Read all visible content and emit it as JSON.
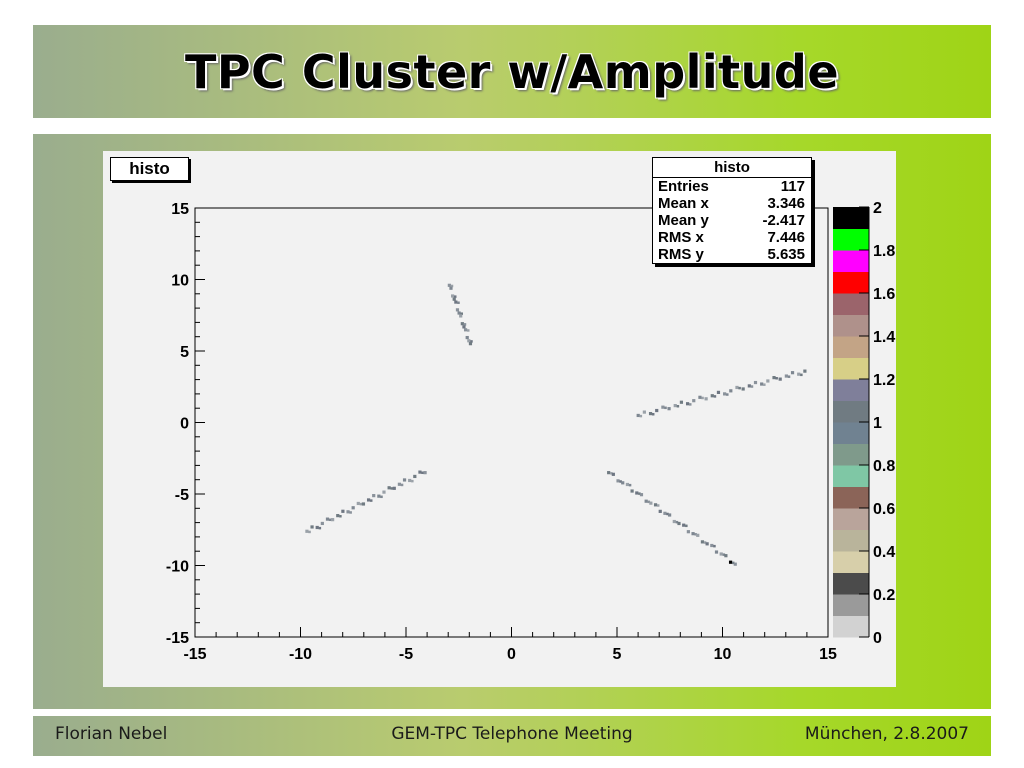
{
  "slide": {
    "title": "TPC Cluster w/Amplitude",
    "footer": {
      "author": "Florian Nebel",
      "meeting": "GEM-TPC Telephone Meeting",
      "place_date": "München, 2.8.2007"
    }
  },
  "chart_data": {
    "type": "heatmap",
    "histogram_name": "histo",
    "xlim": [
      -15,
      15
    ],
    "ylim": [
      -15,
      15
    ],
    "x_ticks": [
      -15,
      -10,
      -5,
      0,
      5,
      10,
      15
    ],
    "y_ticks": [
      -15,
      -10,
      -5,
      0,
      5,
      10,
      15
    ],
    "x_tick_labels": [
      "-15",
      "-10",
      "-5",
      "0",
      "5",
      "10",
      "15"
    ],
    "y_tick_labels": [
      "-15",
      "-10",
      "-5",
      "0",
      "5",
      "10",
      "15"
    ],
    "grid": false,
    "stats": {
      "title": "histo",
      "rows": [
        {
          "label": "Entries",
          "value": "117"
        },
        {
          "label": "Mean x",
          "value": "3.346"
        },
        {
          "label": "Mean y",
          "value": "-2.417"
        },
        {
          "label": "RMS x",
          "value": "7.446"
        },
        {
          "label": "RMS y",
          "value": "5.635"
        }
      ]
    },
    "z_range": [
      0,
      2
    ],
    "z_tick_labels": [
      "0",
      "0.2",
      "0.4",
      "0.6",
      "0.8",
      "1",
      "1.2",
      "1.4",
      "1.6",
      "1.8",
      "2"
    ],
    "palette": [
      "#d2d2d2",
      "#9a9a9a",
      "#4b4b4b",
      "#d7cfaa",
      "#b9b49b",
      "#b9a49b",
      "#8b6458",
      "#7fc7a5",
      "#7f9a8b",
      "#708291",
      "#707b82",
      "#7f7f9a",
      "#d7cf87",
      "#c3a486",
      "#af918b",
      "#9b646b",
      "#ff0000",
      "#ff00ff",
      "#00ff00",
      "#000000"
    ],
    "tracks": [
      {
        "name": "track-upper-left",
        "x_start": -2.95,
        "y_start": 9.6,
        "x_end": -1.95,
        "y_end": 5.4,
        "bins": 14
      },
      {
        "name": "track-right",
        "x_start": 6.0,
        "y_start": 0.5,
        "x_end": 13.9,
        "y_end": 3.6,
        "bins": 28
      },
      {
        "name": "track-lower-left",
        "x_start": -9.7,
        "y_start": -7.6,
        "x_end": -4.1,
        "y_end": -3.4,
        "bins": 24
      },
      {
        "name": "track-lower-right",
        "x_start": 4.6,
        "y_start": -3.5,
        "x_end": 10.6,
        "y_end": -9.9,
        "bins": 28
      }
    ]
  }
}
